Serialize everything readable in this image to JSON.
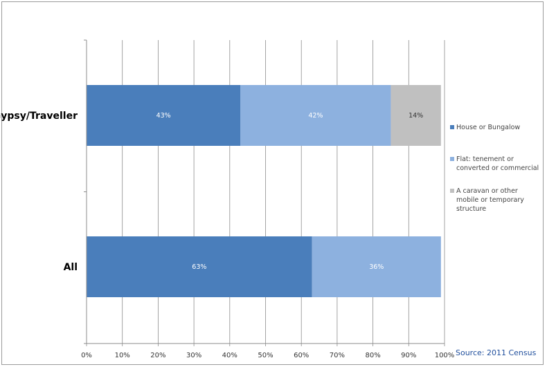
{
  "chart_data": {
    "type": "bar",
    "orientation": "horizontal",
    "stacked": "percent",
    "title": "",
    "xlabel": "",
    "ylabel": "",
    "categories": [
      "Gypsy/Traveller",
      "All"
    ],
    "series": [
      {
        "name": "House or Bungalow",
        "color": "#4a7ebb",
        "values": [
          43,
          63
        ],
        "labels": [
          "43%",
          "63%"
        ]
      },
      {
        "name": "Flat: tenement or converted or commercial",
        "color": "#8db1df",
        "values": [
          42,
          36
        ],
        "labels": [
          "42%",
          "36%"
        ]
      },
      {
        "name": "A caravan or other mobile or temporary structure",
        "color": "#c0c0c0",
        "values": [
          14,
          0
        ],
        "labels": [
          "14%",
          ""
        ]
      }
    ],
    "xlim": [
      0,
      100
    ],
    "xticks": [
      "0%",
      "10%",
      "20%",
      "30%",
      "40%",
      "50%",
      "60%",
      "70%",
      "80%",
      "90%",
      "100%"
    ],
    "grid": true,
    "legend_position": "right"
  },
  "legend": {
    "items": [
      {
        "label": "House or Bungalow",
        "color": "#4a7ebb"
      },
      {
        "label": "Flat: tenement or converted or commercial",
        "color": "#8db1df"
      },
      {
        "label": "A caravan or other mobile or temporary structure",
        "color": "#c0c0c0"
      }
    ]
  },
  "source": "Source: 2011 Census"
}
